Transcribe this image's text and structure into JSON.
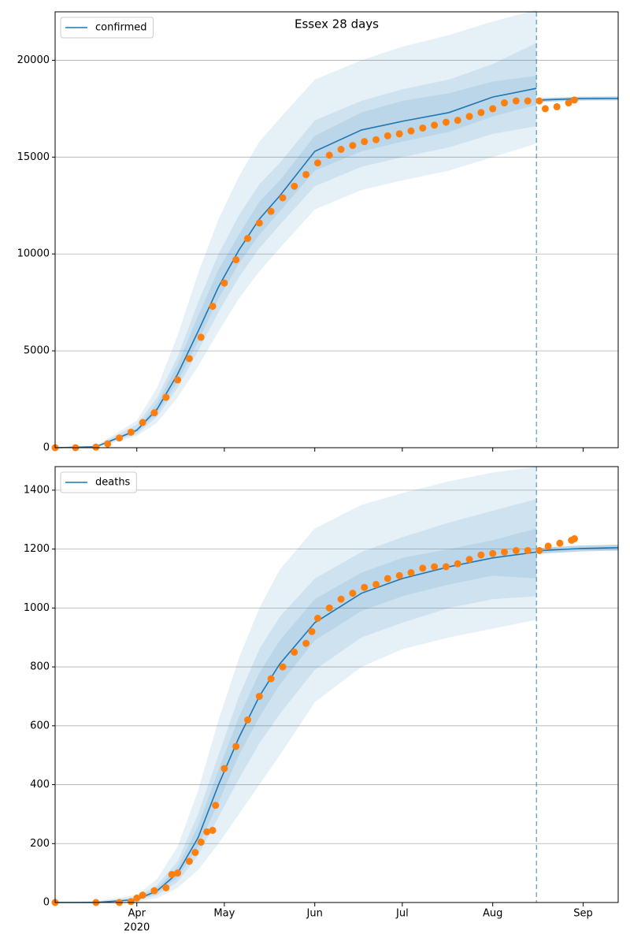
{
  "chart_data": [
    {
      "type": "line",
      "title": "Essex 28 days",
      "legend": "upper left",
      "grid": true,
      "xlim": [
        3,
        196
      ],
      "xticks": [
        31,
        61,
        92,
        122,
        153,
        184
      ],
      "vline_x": 168,
      "ylim": [
        0,
        22500
      ],
      "yticks": [
        0,
        5000,
        10000,
        15000,
        20000
      ],
      "model": {
        "name": "confirmed",
        "color": "#1f77b4",
        "x": [
          3,
          17,
          31,
          38,
          45,
          52,
          59,
          66,
          73,
          80,
          92,
          108,
          122,
          138,
          153,
          168
        ],
        "values": [
          0,
          50,
          900,
          2000,
          3800,
          6000,
          8300,
          10200,
          11800,
          13000,
          15300,
          16400,
          16850,
          17300,
          18100,
          18550
        ]
      },
      "bands": [
        {
          "lower": [
            0,
            20,
            600,
            1300,
            2600,
            4200,
            6000,
            7700,
            9100,
            10300,
            12300,
            13300,
            13800,
            14300,
            15000,
            15700
          ],
          "upper": [
            0,
            100,
            1400,
            3100,
            5800,
            9000,
            11800,
            14000,
            15800,
            17000,
            19000,
            20000,
            20700,
            21300,
            22000,
            22600
          ]
        },
        {
          "lower": [
            0,
            30,
            700,
            1600,
            3100,
            5000,
            7000,
            8800,
            10300,
            11500,
            13500,
            14500,
            15000,
            15500,
            16200,
            16600
          ],
          "upper": [
            0,
            80,
            1200,
            2600,
            4700,
            7500,
            10000,
            12000,
            13600,
            14700,
            16900,
            17900,
            18500,
            19000,
            19800,
            20900
          ]
        },
        {
          "lower": [
            0,
            40,
            800,
            1800,
            3400,
            5500,
            7700,
            9500,
            11000,
            12200,
            14300,
            15300,
            15800,
            16300,
            17100,
            17700
          ],
          "upper": [
            0,
            65,
            1000,
            2300,
            4300,
            6800,
            9200,
            11000,
            12700,
            13800,
            16100,
            17300,
            17900,
            18300,
            18900,
            19200
          ]
        }
      ],
      "forecast": {
        "x": [
          170,
          183,
          196
        ],
        "values": [
          17950,
          18020,
          18030
        ],
        "lower": [
          17850,
          17920,
          17930
        ],
        "upper": [
          18050,
          18120,
          18130
        ]
      },
      "observed": {
        "color": "#ff7f0e",
        "x": [
          3,
          10,
          17,
          21,
          25,
          29,
          33,
          37,
          41,
          45,
          49,
          53,
          57,
          61,
          65,
          69,
          73,
          77,
          81,
          85,
          89,
          93,
          97,
          101,
          105,
          109,
          113,
          117,
          121,
          125,
          129,
          133,
          137,
          141,
          145,
          149,
          153,
          157,
          161,
          165,
          169,
          171,
          175,
          179,
          181
        ],
        "values": [
          0,
          0,
          30,
          200,
          500,
          800,
          1300,
          1800,
          2600,
          3500,
          4600,
          5700,
          7300,
          8500,
          9700,
          10800,
          11600,
          12200,
          12900,
          13500,
          14100,
          14700,
          15100,
          15400,
          15600,
          15800,
          15900,
          16100,
          16200,
          16350,
          16500,
          16650,
          16800,
          16900,
          17100,
          17300,
          17500,
          17800,
          17900,
          17900,
          17900,
          17500,
          17600,
          17800,
          17950
        ]
      }
    },
    {
      "type": "line",
      "legend": "upper left",
      "grid": true,
      "year_label": "2020",
      "xlim": [
        3,
        196
      ],
      "xticks": [
        {
          "value": 31,
          "label": "Apr"
        },
        {
          "value": 61,
          "label": "May"
        },
        {
          "value": 92,
          "label": "Jun"
        },
        {
          "value": 122,
          "label": "Jul"
        },
        {
          "value": 153,
          "label": "Aug"
        },
        {
          "value": 184,
          "label": "Sep"
        }
      ],
      "vline_x": 168,
      "ylim": [
        0,
        1480
      ],
      "yticks": [
        0,
        200,
        400,
        600,
        800,
        1000,
        1200,
        1400
      ],
      "model": {
        "name": "deaths",
        "color": "#1f77b4",
        "x": [
          3,
          17,
          31,
          38,
          45,
          52,
          59,
          66,
          73,
          80,
          92,
          108,
          122,
          138,
          153,
          168
        ],
        "values": [
          0,
          0,
          10,
          40,
          100,
          220,
          400,
          560,
          700,
          810,
          950,
          1050,
          1100,
          1140,
          1170,
          1190
        ]
      },
      "bands": [
        {
          "lower": [
            0,
            0,
            3,
            15,
            50,
            110,
            200,
            300,
            400,
            500,
            680,
            800,
            860,
            900,
            930,
            960
          ],
          "upper": [
            0,
            5,
            25,
            80,
            190,
            380,
            620,
            830,
            1000,
            1130,
            1270,
            1350,
            1390,
            1430,
            1460,
            1480
          ]
        },
        {
          "lower": [
            0,
            0,
            6,
            25,
            70,
            160,
            290,
            420,
            540,
            640,
            790,
            900,
            950,
            1000,
            1030,
            1040
          ],
          "upper": [
            0,
            3,
            18,
            60,
            140,
            300,
            500,
            700,
            860,
            970,
            1100,
            1190,
            1240,
            1290,
            1330,
            1370
          ]
        },
        {
          "lower": [
            0,
            0,
            8,
            32,
            85,
            190,
            340,
            500,
            630,
            740,
            890,
            990,
            1040,
            1080,
            1110,
            1100
          ],
          "upper": [
            0,
            2,
            14,
            50,
            120,
            260,
            450,
            630,
            780,
            890,
            1030,
            1120,
            1170,
            1200,
            1230,
            1270
          ]
        }
      ],
      "forecast": {
        "x": [
          170,
          183,
          196
        ],
        "values": [
          1195,
          1202,
          1205
        ],
        "lower": [
          1185,
          1192,
          1195
        ],
        "upper": [
          1205,
          1212,
          1215
        ]
      },
      "observed": {
        "color": "#ff7f0e",
        "x": [
          3,
          17,
          25,
          29,
          31,
          33,
          37,
          41,
          43,
          45,
          49,
          51,
          53,
          55,
          57,
          58,
          61,
          65,
          69,
          73,
          77,
          81,
          85,
          89,
          91,
          93,
          97,
          101,
          105,
          109,
          113,
          117,
          121,
          125,
          129,
          133,
          137,
          141,
          145,
          149,
          153,
          157,
          161,
          165,
          169,
          172,
          176,
          180,
          181
        ],
        "values": [
          0,
          0,
          0,
          3,
          15,
          25,
          40,
          50,
          95,
          100,
          140,
          170,
          205,
          240,
          245,
          330,
          455,
          530,
          620,
          700,
          760,
          800,
          850,
          880,
          920,
          965,
          1000,
          1030,
          1050,
          1070,
          1080,
          1100,
          1110,
          1120,
          1135,
          1140,
          1140,
          1150,
          1165,
          1180,
          1185,
          1190,
          1195,
          1195,
          1195,
          1210,
          1220,
          1230,
          1235
        ]
      }
    }
  ]
}
